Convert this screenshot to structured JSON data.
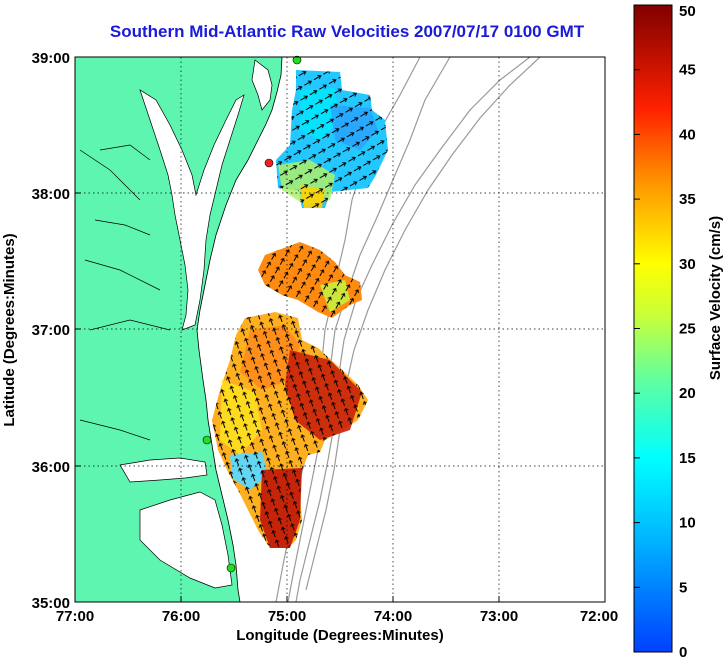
{
  "title": "Southern Mid-Atlantic Raw Velocities 2007/07/17 0100 GMT",
  "map": {
    "x_label": "Longitude (Degrees:Minutes)",
    "y_label": "Latitude (Degrees:Minutes)",
    "x_ticks": [
      "77:00",
      "76:00",
      "75:00",
      "74:00",
      "73:00",
      "72:00"
    ],
    "y_ticks": [
      "39:00",
      "38:00",
      "37:00",
      "36:00",
      "35:00"
    ],
    "lon_range": [
      -77,
      -72
    ],
    "lat_range": [
      35,
      39
    ],
    "grid": "dotted",
    "land_color": "#5ef5b0",
    "isobath_color": "#9a9a9a"
  },
  "colorbar": {
    "label": "Surface Velocity (cm/s)",
    "ticks": [
      "0",
      "5",
      "10",
      "15",
      "20",
      "25",
      "30",
      "35",
      "40",
      "45",
      "50"
    ],
    "range": [
      0,
      50
    ],
    "colormap": "jet"
  },
  "stations": [
    {
      "color": "#22dd22"
    },
    {
      "color": "#ee2222"
    },
    {
      "color": "#22dd22"
    },
    {
      "color": "#22dd22"
    }
  ]
}
